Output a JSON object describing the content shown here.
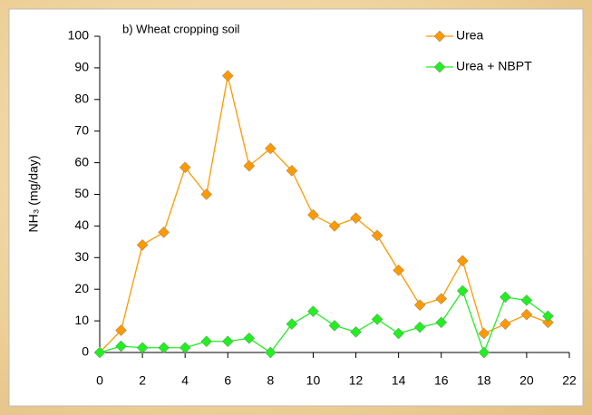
{
  "chart_data": {
    "type": "line",
    "annotation": "b) Wheat cropping soil",
    "y_label": "NH₃ (mg/day)",
    "x": [
      0,
      1,
      2,
      3,
      4,
      5,
      6,
      7,
      8,
      9,
      10,
      11,
      12,
      13,
      14,
      15,
      16,
      17,
      18,
      19,
      20,
      21
    ],
    "series": [
      {
        "name": "Urea",
        "color": "#ff9900",
        "values": [
          0,
          7,
          34,
          38,
          58.5,
          50,
          87.5,
          59,
          64.5,
          57.5,
          43.5,
          40,
          42.5,
          37,
          26,
          15,
          17,
          29,
          6,
          9,
          12,
          9.5
        ]
      },
      {
        "name": "Urea + NBPT",
        "color": "#22ee22",
        "values": [
          0,
          2,
          1.5,
          1.5,
          1.5,
          3.5,
          3.5,
          4.5,
          0,
          9,
          13,
          8.5,
          6.5,
          10.5,
          6,
          8,
          9.5,
          19.5,
          0,
          17.5,
          16.5,
          11.5
        ]
      }
    ],
    "xlim": [
      0,
      22
    ],
    "xticks": [
      0,
      2,
      4,
      6,
      8,
      10,
      12,
      14,
      16,
      18,
      20,
      22
    ],
    "ylim": [
      0,
      100
    ],
    "yticks": [
      0,
      10,
      20,
      30,
      40,
      50,
      60,
      70,
      80,
      90,
      100
    ],
    "legend": "upper right",
    "grid": false
  }
}
